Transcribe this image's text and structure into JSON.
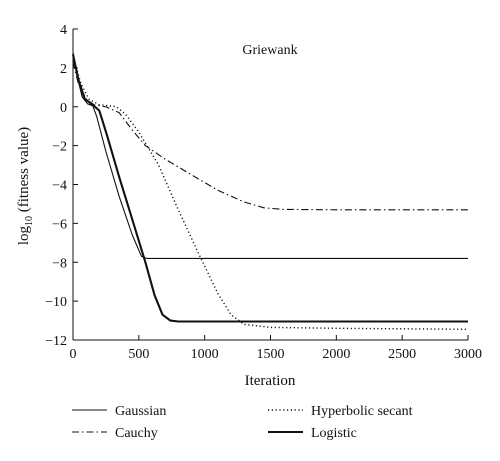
{
  "chart_data": {
    "type": "line",
    "title": "Griewank",
    "xlabel": "Iteration",
    "ylabel_prefix": "log",
    "ylabel_sub": "10",
    "ylabel_suffix": " (fitness value)",
    "xlim": [
      0,
      3000
    ],
    "ylim": [
      -12,
      4
    ],
    "xticks": [
      0,
      500,
      1000,
      1500,
      2000,
      2500,
      3000
    ],
    "yticks": [
      4,
      2,
      0,
      -2,
      -4,
      -6,
      -8,
      -10,
      -12
    ],
    "grid": false,
    "legend_position": "bottom",
    "series": [
      {
        "name": "Gaussian",
        "style": "solid",
        "points": [
          [
            0,
            2.8
          ],
          [
            30,
            1.6
          ],
          [
            70,
            0.5
          ],
          [
            110,
            0.15
          ],
          [
            150,
            0.05
          ],
          [
            180,
            -0.5
          ],
          [
            250,
            -2.3
          ],
          [
            350,
            -4.6
          ],
          [
            450,
            -6.6
          ],
          [
            520,
            -7.7
          ],
          [
            560,
            -7.8
          ],
          [
            700,
            -7.8
          ],
          [
            1000,
            -7.8
          ],
          [
            2000,
            -7.8
          ],
          [
            3000,
            -7.8
          ]
        ]
      },
      {
        "name": "Cauchy",
        "style": "dashdot",
        "points": [
          [
            0,
            2.3
          ],
          [
            40,
            1.2
          ],
          [
            100,
            0.4
          ],
          [
            160,
            0.1
          ],
          [
            250,
            0.0
          ],
          [
            350,
            -0.3
          ],
          [
            450,
            -1.2
          ],
          [
            550,
            -2.0
          ],
          [
            700,
            -2.7
          ],
          [
            900,
            -3.5
          ],
          [
            1100,
            -4.3
          ],
          [
            1300,
            -4.9
          ],
          [
            1450,
            -5.2
          ],
          [
            1600,
            -5.28
          ],
          [
            2000,
            -5.3
          ],
          [
            3000,
            -5.3
          ]
        ]
      },
      {
        "name": "Hyperbolic secant",
        "style": "dotted",
        "points": [
          [
            0,
            2.6
          ],
          [
            60,
            1.2
          ],
          [
            120,
            0.4
          ],
          [
            200,
            0.1
          ],
          [
            280,
            0.05
          ],
          [
            330,
            0.0
          ],
          [
            400,
            -0.4
          ],
          [
            500,
            -1.3
          ],
          [
            650,
            -3.0
          ],
          [
            800,
            -5.3
          ],
          [
            950,
            -7.5
          ],
          [
            1100,
            -9.6
          ],
          [
            1200,
            -10.7
          ],
          [
            1300,
            -11.2
          ],
          [
            1500,
            -11.35
          ],
          [
            2000,
            -11.4
          ],
          [
            3000,
            -11.45
          ]
        ]
      },
      {
        "name": "Logistic",
        "style": "bold",
        "points": [
          [
            0,
            2.7
          ],
          [
            40,
            1.4
          ],
          [
            90,
            0.4
          ],
          [
            150,
            0.1
          ],
          [
            200,
            -0.2
          ],
          [
            260,
            -1.5
          ],
          [
            350,
            -3.6
          ],
          [
            450,
            -5.8
          ],
          [
            550,
            -8.0
          ],
          [
            620,
            -9.7
          ],
          [
            680,
            -10.7
          ],
          [
            740,
            -11.0
          ],
          [
            800,
            -11.05
          ],
          [
            1500,
            -11.05
          ],
          [
            3000,
            -11.05
          ]
        ]
      }
    ]
  }
}
